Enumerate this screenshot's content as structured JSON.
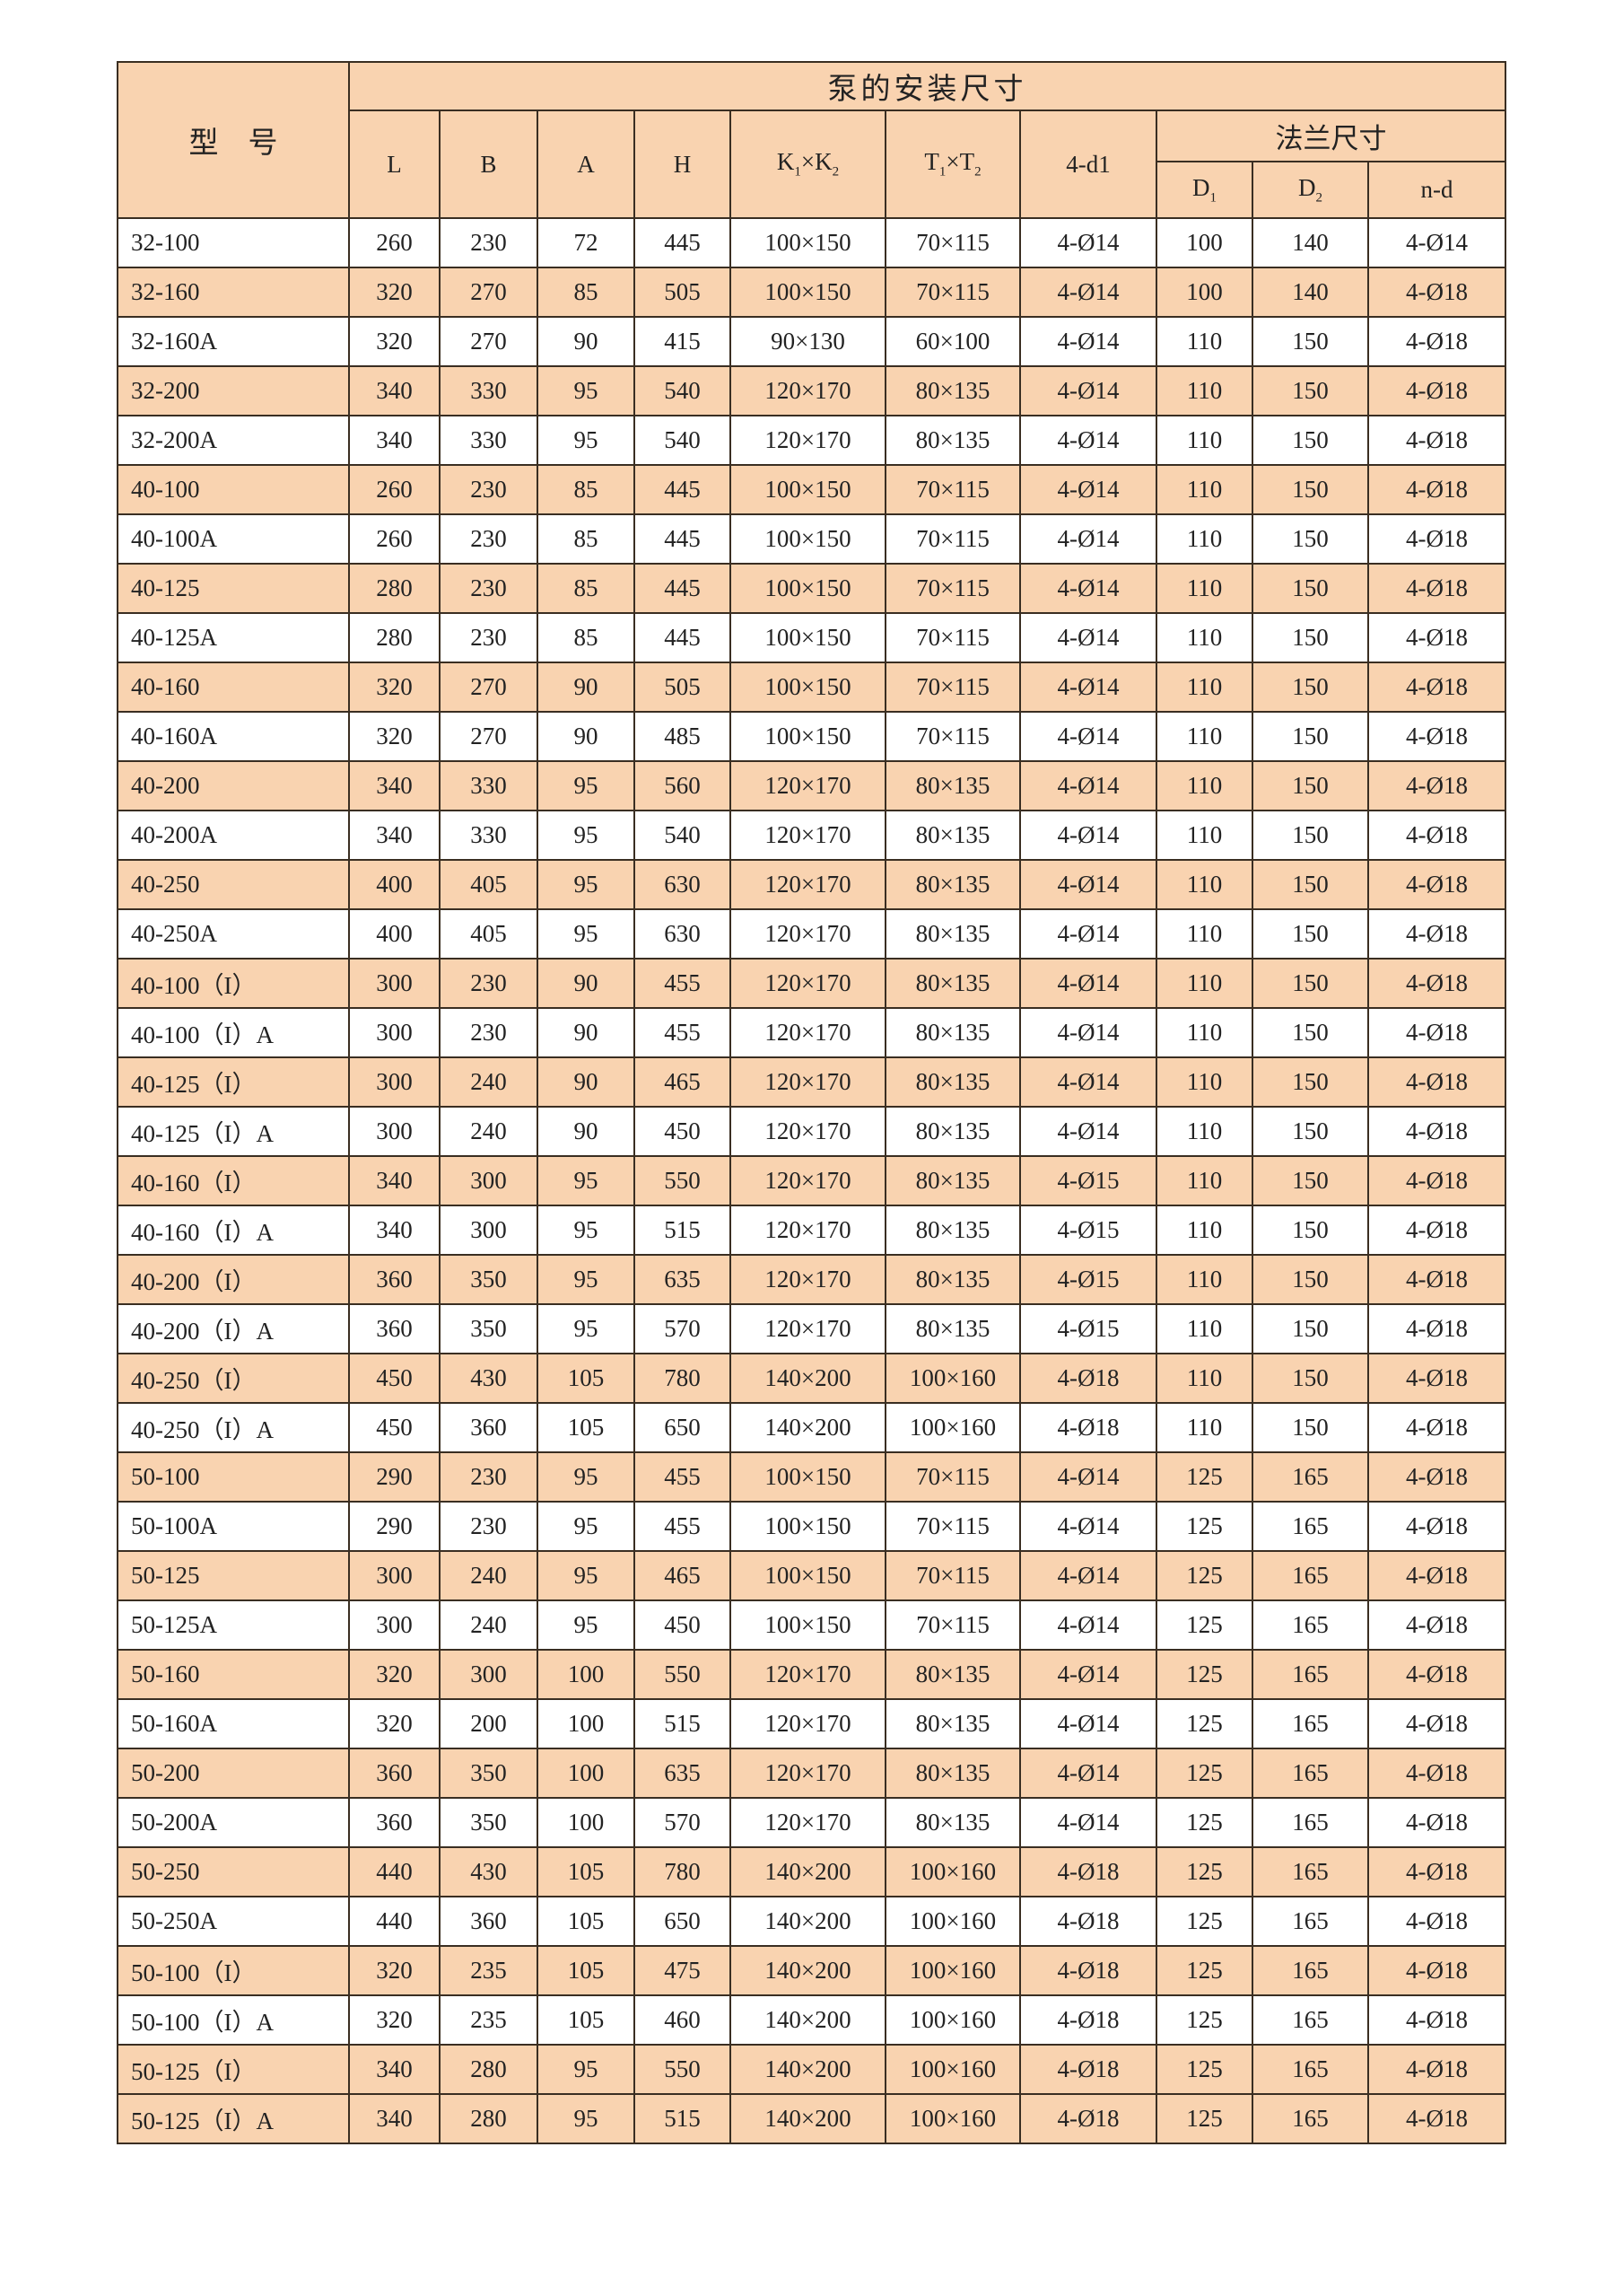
{
  "table": {
    "header": {
      "model": "型　号",
      "group_title": "泵的安装尺寸",
      "L": "L",
      "B": "B",
      "A": "A",
      "H": "H",
      "K": {
        "a": "K",
        "s1": "1",
        "x": "×",
        "b": "K",
        "s2": "2"
      },
      "T": {
        "a": "T",
        "s1": "1",
        "x": "×",
        "b": "T",
        "s2": "2"
      },
      "d1": "4-d1",
      "flange_title": "法兰尺寸",
      "D1": {
        "a": "D",
        "s": "1"
      },
      "D2": {
        "a": "D",
        "s": "2"
      },
      "nd": "n-d"
    },
    "rows": [
      {
        "model": "32-100",
        "L": "260",
        "B": "230",
        "A": "72",
        "H": "445",
        "K": "100×150",
        "T": "70×115",
        "d1": "4-Ø14",
        "D1": "100",
        "D2": "140",
        "nd": "4-Ø14",
        "shaded": false
      },
      {
        "model": "32-160",
        "L": "320",
        "B": "270",
        "A": "85",
        "H": "505",
        "K": "100×150",
        "T": "70×115",
        "d1": "4-Ø14",
        "D1": "100",
        "D2": "140",
        "nd": "4-Ø18",
        "shaded": true
      },
      {
        "model": "32-160A",
        "L": "320",
        "B": "270",
        "A": "90",
        "H": "415",
        "K": "90×130",
        "T": "60×100",
        "d1": "4-Ø14",
        "D1": "110",
        "D2": "150",
        "nd": "4-Ø18",
        "shaded": false
      },
      {
        "model": "32-200",
        "L": "340",
        "B": "330",
        "A": "95",
        "H": "540",
        "K": "120×170",
        "T": "80×135",
        "d1": "4-Ø14",
        "D1": "110",
        "D2": "150",
        "nd": "4-Ø18",
        "shaded": true
      },
      {
        "model": "32-200A",
        "L": "340",
        "B": "330",
        "A": "95",
        "H": "540",
        "K": "120×170",
        "T": "80×135",
        "d1": "4-Ø14",
        "D1": "110",
        "D2": "150",
        "nd": "4-Ø18",
        "shaded": false
      },
      {
        "model": "40-100",
        "L": "260",
        "B": "230",
        "A": "85",
        "H": "445",
        "K": "100×150",
        "T": "70×115",
        "d1": "4-Ø14",
        "D1": "110",
        "D2": "150",
        "nd": "4-Ø18",
        "shaded": true
      },
      {
        "model": "40-100A",
        "L": "260",
        "B": "230",
        "A": "85",
        "H": "445",
        "K": "100×150",
        "T": "70×115",
        "d1": "4-Ø14",
        "D1": "110",
        "D2": "150",
        "nd": "4-Ø18",
        "shaded": false
      },
      {
        "model": "40-125",
        "L": "280",
        "B": "230",
        "A": "85",
        "H": "445",
        "K": "100×150",
        "T": "70×115",
        "d1": "4-Ø14",
        "D1": "110",
        "D2": "150",
        "nd": "4-Ø18",
        "shaded": true
      },
      {
        "model": "40-125A",
        "L": "280",
        "B": "230",
        "A": "85",
        "H": "445",
        "K": "100×150",
        "T": "70×115",
        "d1": "4-Ø14",
        "D1": "110",
        "D2": "150",
        "nd": "4-Ø18",
        "shaded": false
      },
      {
        "model": "40-160",
        "L": "320",
        "B": "270",
        "A": "90",
        "H": "505",
        "K": "100×150",
        "T": "70×115",
        "d1": "4-Ø14",
        "D1": "110",
        "D2": "150",
        "nd": "4-Ø18",
        "shaded": true
      },
      {
        "model": "40-160A",
        "L": "320",
        "B": "270",
        "A": "90",
        "H": "485",
        "K": "100×150",
        "T": "70×115",
        "d1": "4-Ø14",
        "D1": "110",
        "D2": "150",
        "nd": "4-Ø18",
        "shaded": false
      },
      {
        "model": "40-200",
        "L": "340",
        "B": "330",
        "A": "95",
        "H": "560",
        "K": "120×170",
        "T": "80×135",
        "d1": "4-Ø14",
        "D1": "110",
        "D2": "150",
        "nd": "4-Ø18",
        "shaded": true
      },
      {
        "model": "40-200A",
        "L": "340",
        "B": "330",
        "A": "95",
        "H": "540",
        "K": "120×170",
        "T": "80×135",
        "d1": "4-Ø14",
        "D1": "110",
        "D2": "150",
        "nd": "4-Ø18",
        "shaded": false
      },
      {
        "model": "40-250",
        "L": "400",
        "B": "405",
        "A": "95",
        "H": "630",
        "K": "120×170",
        "T": "80×135",
        "d1": "4-Ø14",
        "D1": "110",
        "D2": "150",
        "nd": "4-Ø18",
        "shaded": true
      },
      {
        "model": "40-250A",
        "L": "400",
        "B": "405",
        "A": "95",
        "H": "630",
        "K": "120×170",
        "T": "80×135",
        "d1": "4-Ø14",
        "D1": "110",
        "D2": "150",
        "nd": "4-Ø18",
        "shaded": false
      },
      {
        "model": "40-100（I）",
        "L": "300",
        "B": "230",
        "A": "90",
        "H": "455",
        "K": "120×170",
        "T": "80×135",
        "d1": "4-Ø14",
        "D1": "110",
        "D2": "150",
        "nd": "4-Ø18",
        "shaded": true
      },
      {
        "model": "40-100（I）A",
        "L": "300",
        "B": "230",
        "A": "90",
        "H": "455",
        "K": "120×170",
        "T": "80×135",
        "d1": "4-Ø14",
        "D1": "110",
        "D2": "150",
        "nd": "4-Ø18",
        "shaded": false
      },
      {
        "model": "40-125（I）",
        "L": "300",
        "B": "240",
        "A": "90",
        "H": "465",
        "K": "120×170",
        "T": "80×135",
        "d1": "4-Ø14",
        "D1": "110",
        "D2": "150",
        "nd": "4-Ø18",
        "shaded": true
      },
      {
        "model": "40-125（I）A",
        "L": "300",
        "B": "240",
        "A": "90",
        "H": "450",
        "K": "120×170",
        "T": "80×135",
        "d1": "4-Ø14",
        "D1": "110",
        "D2": "150",
        "nd": "4-Ø18",
        "shaded": false
      },
      {
        "model": "40-160（I）",
        "L": "340",
        "B": "300",
        "A": "95",
        "H": "550",
        "K": "120×170",
        "T": "80×135",
        "d1": "4-Ø15",
        "D1": "110",
        "D2": "150",
        "nd": "4-Ø18",
        "shaded": true
      },
      {
        "model": "40-160（I）A",
        "L": "340",
        "B": "300",
        "A": "95",
        "H": "515",
        "K": "120×170",
        "T": "80×135",
        "d1": "4-Ø15",
        "D1": "110",
        "D2": "150",
        "nd": "4-Ø18",
        "shaded": false
      },
      {
        "model": "40-200（I）",
        "L": "360",
        "B": "350",
        "A": "95",
        "H": "635",
        "K": "120×170",
        "T": "80×135",
        "d1": "4-Ø15",
        "D1": "110",
        "D2": "150",
        "nd": "4-Ø18",
        "shaded": true
      },
      {
        "model": "40-200（I）A",
        "L": "360",
        "B": "350",
        "A": "95",
        "H": "570",
        "K": "120×170",
        "T": "80×135",
        "d1": "4-Ø15",
        "D1": "110",
        "D2": "150",
        "nd": "4-Ø18",
        "shaded": false
      },
      {
        "model": "40-250（I）",
        "L": "450",
        "B": "430",
        "A": "105",
        "H": "780",
        "K": "140×200",
        "T": "100×160",
        "d1": "4-Ø18",
        "D1": "110",
        "D2": "150",
        "nd": "4-Ø18",
        "shaded": true
      },
      {
        "model": "40-250（I）A",
        "L": "450",
        "B": "360",
        "A": "105",
        "H": "650",
        "K": "140×200",
        "T": "100×160",
        "d1": "4-Ø18",
        "D1": "110",
        "D2": "150",
        "nd": "4-Ø18",
        "shaded": false
      },
      {
        "model": "50-100",
        "L": "290",
        "B": "230",
        "A": "95",
        "H": "455",
        "K": "100×150",
        "T": "70×115",
        "d1": "4-Ø14",
        "D1": "125",
        "D2": "165",
        "nd": "4-Ø18",
        "shaded": true
      },
      {
        "model": "50-100A",
        "L": "290",
        "B": "230",
        "A": "95",
        "H": "455",
        "K": "100×150",
        "T": "70×115",
        "d1": "4-Ø14",
        "D1": "125",
        "D2": "165",
        "nd": "4-Ø18",
        "shaded": false
      },
      {
        "model": "50-125",
        "L": "300",
        "B": "240",
        "A": "95",
        "H": "465",
        "K": "100×150",
        "T": "70×115",
        "d1": "4-Ø14",
        "D1": "125",
        "D2": "165",
        "nd": "4-Ø18",
        "shaded": true
      },
      {
        "model": "50-125A",
        "L": "300",
        "B": "240",
        "A": "95",
        "H": "450",
        "K": "100×150",
        "T": "70×115",
        "d1": "4-Ø14",
        "D1": "125",
        "D2": "165",
        "nd": "4-Ø18",
        "shaded": false
      },
      {
        "model": "50-160",
        "L": "320",
        "B": "300",
        "A": "100",
        "H": "550",
        "K": "120×170",
        "T": "80×135",
        "d1": "4-Ø14",
        "D1": "125",
        "D2": "165",
        "nd": "4-Ø18",
        "shaded": true
      },
      {
        "model": "50-160A",
        "L": "320",
        "B": "200",
        "A": "100",
        "H": "515",
        "K": "120×170",
        "T": "80×135",
        "d1": "4-Ø14",
        "D1": "125",
        "D2": "165",
        "nd": "4-Ø18",
        "shaded": false
      },
      {
        "model": "50-200",
        "L": "360",
        "B": "350",
        "A": "100",
        "H": "635",
        "K": "120×170",
        "T": "80×135",
        "d1": "4-Ø14",
        "D1": "125",
        "D2": "165",
        "nd": "4-Ø18",
        "shaded": true
      },
      {
        "model": "50-200A",
        "L": "360",
        "B": "350",
        "A": "100",
        "H": "570",
        "K": "120×170",
        "T": "80×135",
        "d1": "4-Ø14",
        "D1": "125",
        "D2": "165",
        "nd": "4-Ø18",
        "shaded": false
      },
      {
        "model": "50-250",
        "L": "440",
        "B": "430",
        "A": "105",
        "H": "780",
        "K": "140×200",
        "T": "100×160",
        "d1": "4-Ø18",
        "D1": "125",
        "D2": "165",
        "nd": "4-Ø18",
        "shaded": true
      },
      {
        "model": "50-250A",
        "L": "440",
        "B": "360",
        "A": "105",
        "H": "650",
        "K": "140×200",
        "T": "100×160",
        "d1": "4-Ø18",
        "D1": "125",
        "D2": "165",
        "nd": "4-Ø18",
        "shaded": false
      },
      {
        "model": "50-100（I）",
        "L": "320",
        "B": "235",
        "A": "105",
        "H": "475",
        "K": "140×200",
        "T": "100×160",
        "d1": "4-Ø18",
        "D1": "125",
        "D2": "165",
        "nd": "4-Ø18",
        "shaded": true
      },
      {
        "model": "50-100（I）A",
        "L": "320",
        "B": "235",
        "A": "105",
        "H": "460",
        "K": "140×200",
        "T": "100×160",
        "d1": "4-Ø18",
        "D1": "125",
        "D2": "165",
        "nd": "4-Ø18",
        "shaded": false
      },
      {
        "model": "50-125（I）",
        "L": "340",
        "B": "280",
        "A": "95",
        "H": "550",
        "K": "140×200",
        "T": "100×160",
        "d1": "4-Ø18",
        "D1": "125",
        "D2": "165",
        "nd": "4-Ø18",
        "shaded": true
      },
      {
        "model": "50-125（I）A",
        "L": "340",
        "B": "280",
        "A": "95",
        "H": "515",
        "K": "140×200",
        "T": "100×160",
        "d1": "4-Ø18",
        "D1": "125",
        "D2": "165",
        "nd": "4-Ø18",
        "shaded": true
      }
    ]
  },
  "colors": {
    "header_bg": "#f9d3b0",
    "shaded_row_bg": "#f9d3b0",
    "border": "#3a2e22"
  }
}
